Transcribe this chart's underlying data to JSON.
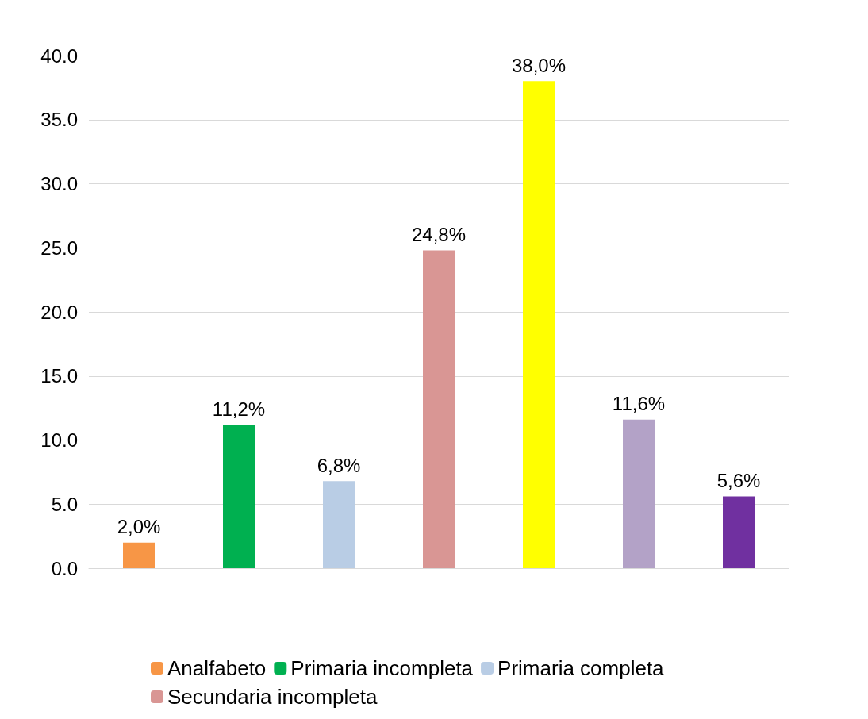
{
  "chart_data": {
    "type": "bar",
    "categories": [
      null,
      null,
      null,
      null,
      null,
      null,
      null
    ],
    "series": [
      {
        "name": "Analfabeto",
        "color": "#f79646",
        "values": [
          2.0,
          null,
          null,
          null,
          null,
          null,
          null
        ],
        "value_labels": [
          "2,0%",
          null,
          null,
          null,
          null,
          null,
          null
        ]
      },
      {
        "name": "Primaria incompleta",
        "color": "#00b050",
        "values": [
          null,
          11.2,
          null,
          null,
          null,
          null,
          null
        ],
        "value_labels": [
          null,
          "11,2%",
          null,
          null,
          null,
          null,
          null
        ]
      },
      {
        "name": "Primaria completa",
        "color": "#b9cde5",
        "values": [
          null,
          null,
          6.8,
          null,
          null,
          null,
          null
        ],
        "value_labels": [
          null,
          null,
          "6,8%",
          null,
          null,
          null,
          null
        ]
      },
      {
        "name": "Secundaria incompleta",
        "color": "#d99694",
        "values": [
          null,
          null,
          null,
          24.8,
          null,
          null,
          null
        ],
        "value_labels": [
          null,
          null,
          null,
          "24,8%",
          null,
          null,
          null
        ]
      },
      {
        "color": "#ffff00",
        "values": [
          null,
          null,
          null,
          null,
          38.0,
          null,
          null
        ],
        "value_labels": [
          null,
          null,
          null,
          null,
          "38,0%",
          null,
          null
        ]
      },
      {
        "color": "#b3a2c7",
        "values": [
          null,
          null,
          null,
          null,
          null,
          11.6,
          null
        ],
        "value_labels": [
          null,
          null,
          null,
          null,
          null,
          "11,6%",
          null
        ]
      },
      {
        "color": "#7030a0",
        "values": [
          null,
          null,
          null,
          null,
          null,
          null,
          5.6
        ],
        "value_labels": [
          null,
          null,
          null,
          null,
          null,
          null,
          "5,6%"
        ]
      }
    ],
    "ylim": [
      0,
      40
    ],
    "yticks": [
      {
        "value": 0,
        "label": "0.0"
      },
      {
        "value": 5,
        "label": "5.0"
      },
      {
        "value": 10,
        "label": "10.0"
      },
      {
        "value": 15,
        "label": "15.0"
      },
      {
        "value": 20,
        "label": "20.0"
      },
      {
        "value": 25,
        "label": "25.0"
      },
      {
        "value": 30,
        "label": "30.0"
      },
      {
        "value": 35,
        "label": "35.0"
      },
      {
        "value": 40,
        "label": "40.0"
      }
    ],
    "grid": "y",
    "legend": "bottom"
  }
}
